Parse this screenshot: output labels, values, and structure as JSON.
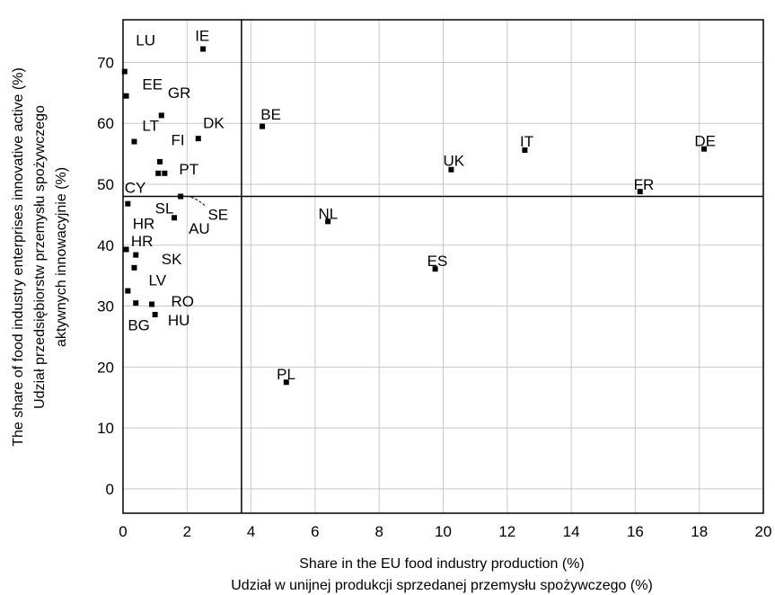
{
  "chart_data": {
    "type": "scatter",
    "title": "",
    "xlabel": [
      "Share in the EU food industry production (%)",
      "Udział w unijnej produkcji sprzedanej przemysłu spożywczego (%)"
    ],
    "ylabel": [
      "The share of food industry enterprises innovative active (%)",
      "Udział przedsiębiorstw przemysłu spożywczego",
      "aktywnych innowacyjnie (%)"
    ],
    "xlim": [
      0,
      20
    ],
    "ylim": [
      -4,
      77
    ],
    "xticks": [
      "0",
      "2",
      "4",
      "6",
      "8",
      "10",
      "12",
      "14",
      "16",
      "18",
      "20"
    ],
    "yticks": [
      "0",
      "10",
      "20",
      "30",
      "40",
      "50",
      "60",
      "70"
    ],
    "grid": true,
    "reference_lines": {
      "x": 3.7,
      "y": 48
    },
    "points": [
      {
        "x": 2.5,
        "y": 72.2
      },
      {
        "x": 0.05,
        "y": 68.5
      },
      {
        "x": 0.1,
        "y": 64.5
      },
      {
        "x": 1.2,
        "y": 61.3
      },
      {
        "x": 2.35,
        "y": 57.5
      },
      {
        "x": 0.35,
        "y": 57
      },
      {
        "x": 4.35,
        "y": 59.5
      },
      {
        "x": 1.15,
        "y": 53.7
      },
      {
        "x": 1.1,
        "y": 51.8
      },
      {
        "x": 1.3,
        "y": 51.8
      },
      {
        "x": 1.8,
        "y": 48
      },
      {
        "x": 0.15,
        "y": 46.8
      },
      {
        "x": 1.6,
        "y": 44.5
      },
      {
        "x": 0.1,
        "y": 39.3
      },
      {
        "x": 0.4,
        "y": 38.4
      },
      {
        "x": 0.35,
        "y": 36.3
      },
      {
        "x": 0.15,
        "y": 32.5
      },
      {
        "x": 0.4,
        "y": 30.5
      },
      {
        "x": 0.9,
        "y": 30.3
      },
      {
        "x": 1.0,
        "y": 28.6
      },
      {
        "x": 10.25,
        "y": 52.4
      },
      {
        "x": 12.55,
        "y": 55.6
      },
      {
        "x": 16.15,
        "y": 48.8
      },
      {
        "x": 18.15,
        "y": 55.8
      },
      {
        "x": 6.4,
        "y": 43.9
      },
      {
        "x": 9.75,
        "y": 36.1
      },
      {
        "x": 5.1,
        "y": 17.5
      }
    ],
    "labels": [
      {
        "text": "LU",
        "x": 0.4,
        "y": 72.8
      },
      {
        "text": "IE",
        "x": 2.25,
        "y": 73.5
      },
      {
        "text": "EE",
        "x": 0.6,
        "y": 65.6
      },
      {
        "text": "GR",
        "x": 1.4,
        "y": 64.2
      },
      {
        "text": "LT",
        "x": 0.6,
        "y": 58.8
      },
      {
        "text": "DK",
        "x": 2.5,
        "y": 59.2
      },
      {
        "text": "FI",
        "x": 1.5,
        "y": 56.4
      },
      {
        "text": "BE",
        "x": 4.3,
        "y": 60.6
      },
      {
        "text": "PT",
        "x": 1.75,
        "y": 51.6
      },
      {
        "text": "CY",
        "x": 0.05,
        "y": 48.6
      },
      {
        "text": "SL",
        "x": 1.0,
        "y": 45.2
      },
      {
        "text": "SE",
        "x": 2.65,
        "y": 44.2
      },
      {
        "text": "HR",
        "x": 0.3,
        "y": 42.7
      },
      {
        "text": "AU",
        "x": 2.05,
        "y": 41.9
      },
      {
        "text": "HR",
        "x": 0.25,
        "y": 39.8
      },
      {
        "text": "SK",
        "x": 1.2,
        "y": 36.9
      },
      {
        "text": "LV",
        "x": 0.8,
        "y": 33.4
      },
      {
        "text": "RO",
        "x": 1.5,
        "y": 29.9
      },
      {
        "text": "BG",
        "x": 0.15,
        "y": 26.0
      },
      {
        "text": "HU",
        "x": 1.4,
        "y": 26.8
      },
      {
        "text": "UK",
        "x": 10.0,
        "y": 53.0
      },
      {
        "text": "IT",
        "x": 12.4,
        "y": 56.2
      },
      {
        "text": "FR",
        "x": 15.95,
        "y": 49.1
      },
      {
        "text": "DE",
        "x": 17.85,
        "y": 56.3
      },
      {
        "text": "NL",
        "x": 6.1,
        "y": 44.3
      },
      {
        "text": "ES",
        "x": 9.5,
        "y": 36.6
      },
      {
        "text": "PL",
        "x": 4.8,
        "y": 18.0
      }
    ]
  }
}
